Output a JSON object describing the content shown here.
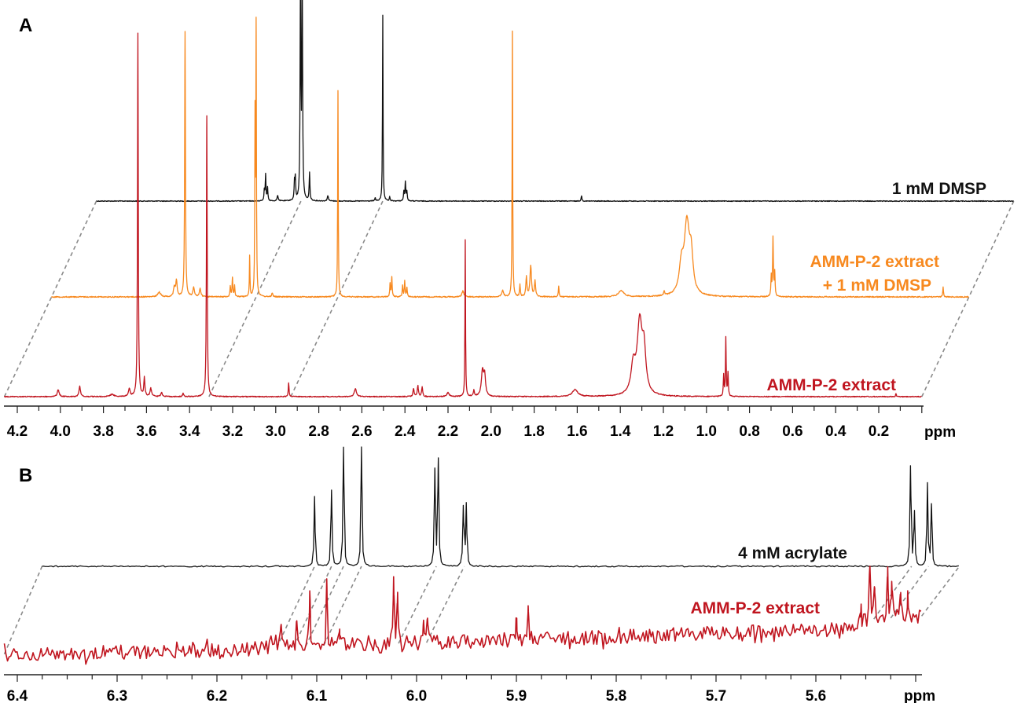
{
  "chart_data": [
    {
      "panel": "A",
      "type": "line",
      "xlabel": "ppm",
      "xlim": [
        4.26,
        0.0
      ],
      "x_reversed": true,
      "xticks": [
        "4.2",
        "4.0",
        "3.8",
        "3.6",
        "3.4",
        "3.2",
        "3.0",
        "2.8",
        "2.6",
        "2.4",
        "2.2",
        "2.0",
        "1.8",
        "1.6",
        "1.4",
        "1.2",
        "1.0",
        "0.8",
        "0.6",
        "0.4",
        "0.2"
      ],
      "grid": false,
      "layout": "stacked spectra, perspective offset",
      "correspondence_ppm": [
        3.31,
        2.93
      ],
      "series": [
        {
          "name": "1 mM DMSP",
          "label_lines": [
            "1 mM DMSP"
          ],
          "color": "#111111",
          "peaks": [
            {
              "ppm": 3.48,
              "i": 2.8,
              "w": 0.002
            },
            {
              "ppm": 3.474,
              "i": 7.1,
              "w": 0.002
            },
            {
              "ppm": 3.465,
              "i": 3.5,
              "w": 0.002
            },
            {
              "ppm": 3.418,
              "i": 1.5,
              "w": 0.003
            },
            {
              "ppm": 3.34,
              "i": 4.8,
              "w": 0.002
            },
            {
              "ppm": 3.336,
              "i": 5.8,
              "w": 0.002
            },
            {
              "ppm": 3.312,
              "i": 62,
              "w": 0.002
            },
            {
              "ppm": 3.304,
              "i": 62,
              "w": 0.002
            },
            {
              "ppm": 3.27,
              "i": 7.6,
              "w": 0.002
            },
            {
              "ppm": 3.185,
              "i": 1.5,
              "w": 0.003
            },
            {
              "ppm": 2.965,
              "i": 0.9,
              "w": 0.002
            },
            {
              "ppm": 2.93,
              "i": 51.2,
              "w": 0.0015
            },
            {
              "ppm": 2.898,
              "i": 1.1,
              "w": 0.002
            },
            {
              "ppm": 2.832,
              "i": 2.6,
              "w": 0.002
            },
            {
              "ppm": 2.825,
              "i": 5.2,
              "w": 0.002
            },
            {
              "ppm": 2.818,
              "i": 2.6,
              "w": 0.002
            },
            {
              "ppm": 2.007,
              "i": 1.5,
              "w": 0.002
            }
          ]
        },
        {
          "name": "AMM-P-2 extract + 1 mM DMSP",
          "label_lines": [
            "AMM-P-2 extract",
            "+ 1 mM DMSP"
          ],
          "color": "#f7891f",
          "peaks": [
            {
              "ppm": 3.76,
              "i": 1.3,
              "w": 0.008
            },
            {
              "ppm": 3.69,
              "i": 2.6,
              "w": 0.004
            },
            {
              "ppm": 3.68,
              "i": 4.3,
              "w": 0.004
            },
            {
              "ppm": 3.64,
              "i": 73,
              "w": 0.002
            },
            {
              "ppm": 3.6,
              "i": 2.6,
              "w": 0.004
            },
            {
              "ppm": 3.57,
              "i": 2.2,
              "w": 0.004
            },
            {
              "ppm": 3.43,
              "i": 3.0,
              "w": 0.002
            },
            {
              "ppm": 3.42,
              "i": 5.2,
              "w": 0.002
            },
            {
              "ppm": 3.41,
              "i": 3.0,
              "w": 0.002
            },
            {
              "ppm": 3.34,
              "i": 11.2,
              "w": 0.0015
            },
            {
              "ppm": 3.315,
              "i": 48,
              "w": 0.0015
            },
            {
              "ppm": 3.31,
              "i": 73,
              "w": 0.0015
            },
            {
              "ppm": 3.235,
              "i": 1.1,
              "w": 0.003
            },
            {
              "ppm": 2.93,
              "i": 56.6,
              "w": 0.0015
            },
            {
              "ppm": 2.688,
              "i": 3.5,
              "w": 0.002
            },
            {
              "ppm": 2.68,
              "i": 5.4,
              "w": 0.002
            },
            {
              "ppm": 2.63,
              "i": 3.0,
              "w": 0.002
            },
            {
              "ppm": 2.62,
              "i": 4.3,
              "w": 0.002
            },
            {
              "ppm": 2.61,
              "i": 2.6,
              "w": 0.002
            },
            {
              "ppm": 2.35,
              "i": 1.7,
              "w": 0.005
            },
            {
              "ppm": 2.165,
              "i": 1.7,
              "w": 0.005
            },
            {
              "ppm": 2.12,
              "i": 73,
              "w": 0.0015
            },
            {
              "ppm": 2.085,
              "i": 3.2,
              "w": 0.002
            },
            {
              "ppm": 2.055,
              "i": 5.4,
              "w": 0.003
            },
            {
              "ppm": 2.035,
              "i": 8.6,
              "w": 0.004
            },
            {
              "ppm": 2.015,
              "i": 4.3,
              "w": 0.003
            },
            {
              "ppm": 1.905,
              "i": 2.8,
              "w": 0.002
            },
            {
              "ppm": 1.615,
              "i": 1.7,
              "w": 0.015
            },
            {
              "ppm": 1.415,
              "i": 1.1,
              "w": 0.003
            },
            {
              "ppm": 1.335,
              "i": 7.6,
              "w": 0.012
            },
            {
              "ppm": 1.31,
              "i": 19,
              "w": 0.014
            },
            {
              "ppm": 1.29,
              "i": 9.7,
              "w": 0.01
            },
            {
              "ppm": 0.918,
              "i": 5.4,
              "w": 0.002
            },
            {
              "ppm": 0.91,
              "i": 16.2,
              "w": 0.002
            },
            {
              "ppm": 0.902,
              "i": 6.5,
              "w": 0.002
            },
            {
              "ppm": 0.12,
              "i": 2.6,
              "w": 0.002
            }
          ]
        },
        {
          "name": "AMM-P-2 extract",
          "label_lines": [
            "AMM-P-2 extract"
          ],
          "color": "#c0151f",
          "peaks": [
            {
              "ppm": 4.01,
              "i": 1.9,
              "w": 0.005
            },
            {
              "ppm": 3.91,
              "i": 2.8,
              "w": 0.004
            },
            {
              "ppm": 3.76,
              "i": 0.6,
              "w": 0.01
            },
            {
              "ppm": 3.68,
              "i": 2.2,
              "w": 0.004
            },
            {
              "ppm": 3.64,
              "i": 100,
              "w": 0.002
            },
            {
              "ppm": 3.61,
              "i": 5.0,
              "w": 0.003
            },
            {
              "ppm": 3.58,
              "i": 2.2,
              "w": 0.004
            },
            {
              "ppm": 3.53,
              "i": 1.1,
              "w": 0.004
            },
            {
              "ppm": 3.43,
              "i": 0.9,
              "w": 0.003
            },
            {
              "ppm": 3.32,
              "i": 77.1,
              "w": 0.002
            },
            {
              "ppm": 2.94,
              "i": 3.9,
              "w": 0.002
            },
            {
              "ppm": 2.63,
              "i": 2.2,
              "w": 0.006
            },
            {
              "ppm": 2.36,
              "i": 2.2,
              "w": 0.003
            },
            {
              "ppm": 2.34,
              "i": 3.0,
              "w": 0.003
            },
            {
              "ppm": 2.32,
              "i": 2.6,
              "w": 0.003
            },
            {
              "ppm": 2.2,
              "i": 1.1,
              "w": 0.006
            },
            {
              "ppm": 2.12,
              "i": 43.2,
              "w": 0.0015
            },
            {
              "ppm": 2.08,
              "i": 1.7,
              "w": 0.003
            },
            {
              "ppm": 2.04,
              "i": 6.9,
              "w": 0.006
            },
            {
              "ppm": 2.03,
              "i": 5.4,
              "w": 0.005
            },
            {
              "ppm": 1.61,
              "i": 1.9,
              "w": 0.015
            },
            {
              "ppm": 1.34,
              "i": 7.6,
              "w": 0.012
            },
            {
              "ppm": 1.31,
              "i": 19.5,
              "w": 0.014
            },
            {
              "ppm": 1.29,
              "i": 10.8,
              "w": 0.01
            },
            {
              "ppm": 0.92,
              "i": 5.8,
              "w": 0.002
            },
            {
              "ppm": 0.91,
              "i": 16.0,
              "w": 0.0018
            },
            {
              "ppm": 0.9,
              "i": 6.5,
              "w": 0.002
            },
            {
              "ppm": 0.12,
              "i": 0.9,
              "w": 0.002
            }
          ]
        }
      ]
    },
    {
      "panel": "B",
      "type": "line",
      "xlabel": "ppm",
      "xlim": [
        6.413,
        5.494
      ],
      "x_reversed": true,
      "xticks": [
        "6.4",
        "6.3",
        "6.2",
        "6.1",
        "6.0",
        "5.9",
        "5.8",
        "5.7",
        "5.6"
      ],
      "grid": false,
      "layout": "stacked spectra, perspective offset",
      "correspondence_ppm": [
        6.14,
        6.123,
        6.111,
        6.093,
        6.018,
        5.99,
        5.542,
        5.525
      ],
      "series": [
        {
          "name": "4 mM acrylate",
          "label_lines": [
            "4 mM acrylate"
          ],
          "color": "#111111",
          "peaks": [
            {
              "ppm": 6.14,
              "i": 57.9,
              "w": 0.0006
            },
            {
              "ppm": 6.123,
              "i": 63.2,
              "w": 0.0006
            },
            {
              "ppm": 6.111,
              "i": 100,
              "w": 0.0006
            },
            {
              "ppm": 6.093,
              "i": 99.3,
              "w": 0.0006
            },
            {
              "ppm": 6.0195,
              "i": 79.6,
              "w": 0.0006
            },
            {
              "ppm": 6.016,
              "i": 88.2,
              "w": 0.0006
            },
            {
              "ppm": 5.991,
              "i": 49.3,
              "w": 0.0006
            },
            {
              "ppm": 5.988,
              "i": 51.3,
              "w": 0.0006
            },
            {
              "ppm": 5.543,
              "i": 83.6,
              "w": 0.0006
            },
            {
              "ppm": 5.539,
              "i": 44.7,
              "w": 0.0006
            },
            {
              "ppm": 5.526,
              "i": 68.4,
              "w": 0.0006
            },
            {
              "ppm": 5.522,
              "i": 51.3,
              "w": 0.0006
            }
          ]
        },
        {
          "name": "AMM-P-2 extract",
          "label_lines": [
            "AMM-P-2 extract"
          ],
          "color": "#c0151f",
          "peaks": [
            {
              "ppm": 6.136,
              "i": 23,
              "w": 0.0006
            },
            {
              "ppm": 6.12,
              "i": 20,
              "w": 0.0006
            },
            {
              "ppm": 6.107,
              "i": 45,
              "w": 0.0006
            },
            {
              "ppm": 6.09,
              "i": 51,
              "w": 0.0006
            },
            {
              "ppm": 6.077,
              "i": 10,
              "w": 0.0006
            },
            {
              "ppm": 6.023,
              "i": 53,
              "w": 0.0006
            },
            {
              "ppm": 6.019,
              "i": 43,
              "w": 0.0006
            },
            {
              "ppm": 5.993,
              "i": 23,
              "w": 0.0006
            },
            {
              "ppm": 5.989,
              "i": 22,
              "w": 0.0006
            },
            {
              "ppm": 5.9,
              "i": 21,
              "w": 0.0006
            },
            {
              "ppm": 5.888,
              "i": 28,
              "w": 0.0006
            },
            {
              "ppm": 5.555,
              "i": 13,
              "w": 0.0006
            },
            {
              "ppm": 5.546,
              "i": 47,
              "w": 0.0006
            },
            {
              "ppm": 5.541,
              "i": 28,
              "w": 0.0006
            },
            {
              "ppm": 5.528,
              "i": 38,
              "w": 0.0006
            },
            {
              "ppm": 5.524,
              "i": 33,
              "w": 0.0006
            },
            {
              "ppm": 5.515,
              "i": 18,
              "w": 0.0006
            },
            {
              "ppm": 5.508,
              "i": 14,
              "w": 0.0006
            }
          ]
        }
      ]
    }
  ]
}
